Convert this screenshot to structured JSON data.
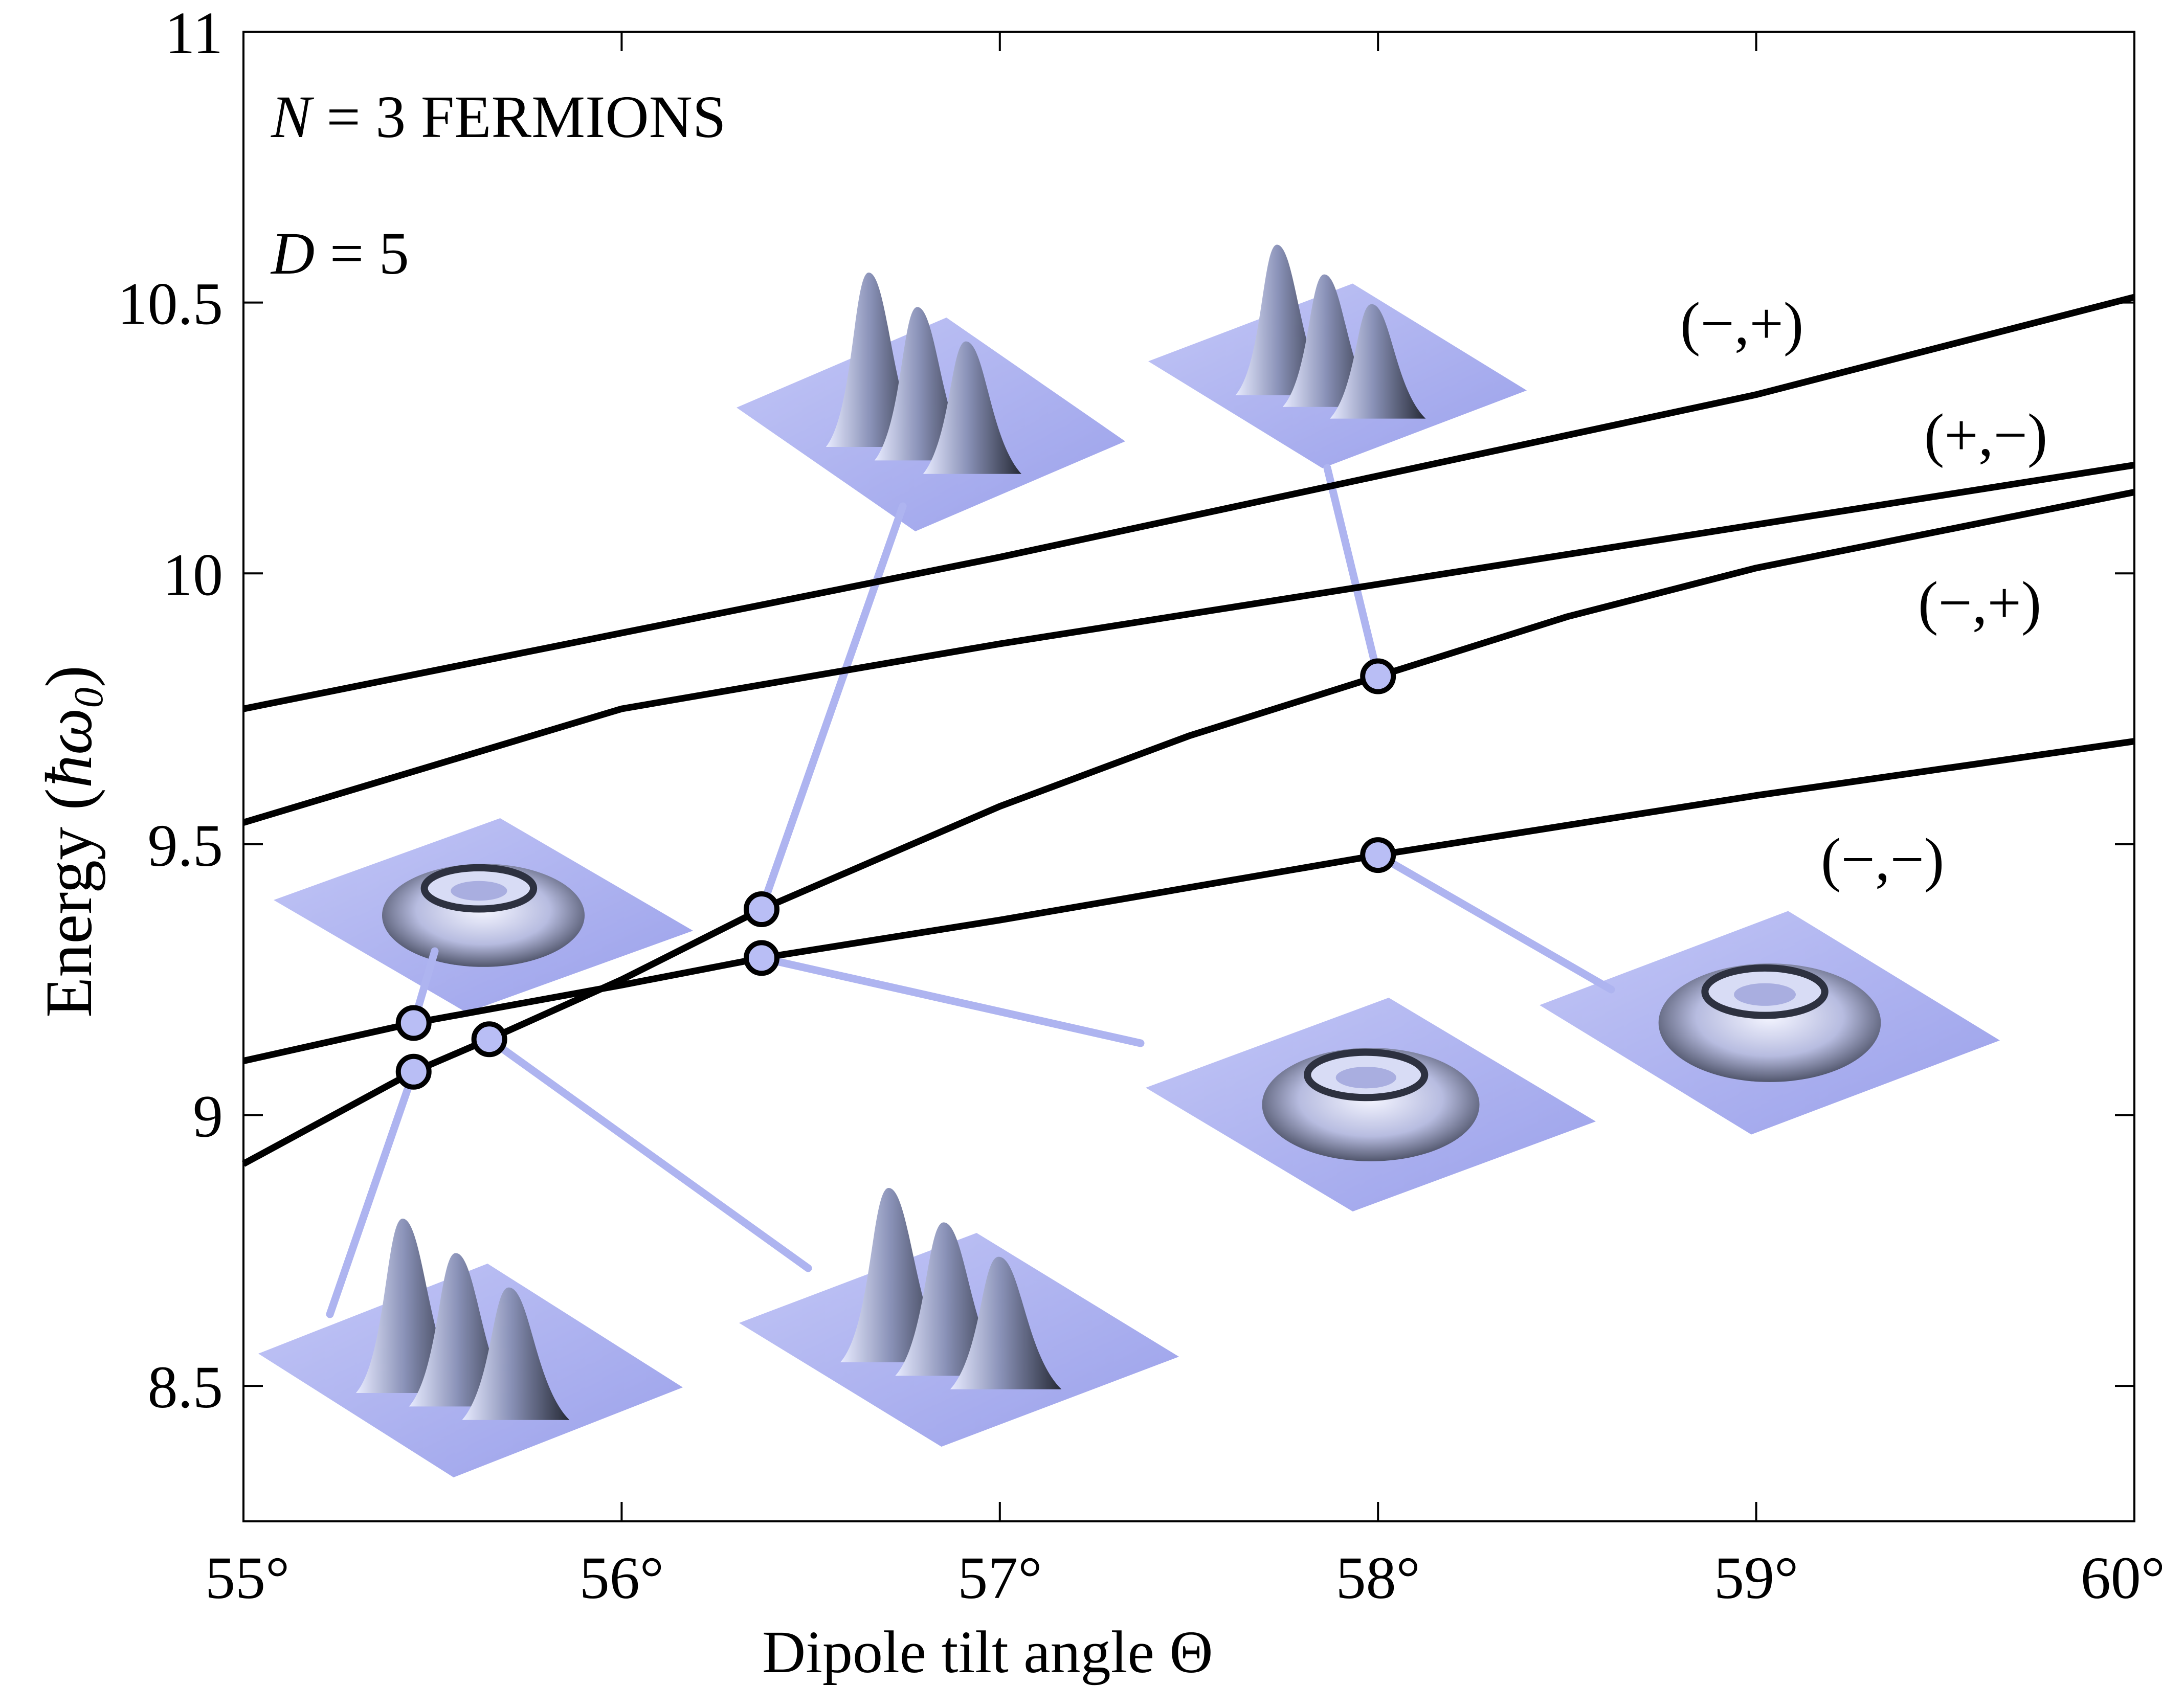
{
  "chart_data": {
    "type": "line",
    "xlabel": "Dipole tilt angle Θ",
    "ylabel": "Energy",
    "ylabel_unit": "ħω",
    "ylabel_unit_sub": "0",
    "xlim": [
      55,
      60
    ],
    "ylim": [
      8.25,
      11
    ],
    "x_ticks": [
      55,
      56,
      57,
      58,
      59,
      60
    ],
    "x_tick_labels": [
      "55°",
      "56°",
      "57°",
      "58°",
      "59°",
      "60°"
    ],
    "y_ticks": [
      8.5,
      9,
      9.5,
      10,
      10.5,
      11
    ],
    "y_tick_labels": [
      "8.5",
      "9",
      "9.5",
      "10",
      "10.5",
      "11"
    ],
    "grid": false,
    "annotations": [
      {
        "italic": "N",
        "text": " = 3 FERMIONS"
      },
      {
        "italic": "D",
        "text": " = 5"
      }
    ],
    "series": [
      {
        "label": "(−,+)",
        "x": [
          55,
          56,
          57,
          58,
          59,
          60
        ],
        "y": [
          9.75,
          9.89,
          10.03,
          10.18,
          10.33,
          10.51
        ]
      },
      {
        "label": "(+,−)",
        "x": [
          55,
          56,
          57,
          58,
          59,
          60
        ],
        "y": [
          9.54,
          9.75,
          9.87,
          9.98,
          10.09,
          10.2
        ]
      },
      {
        "label": "(−,+)",
        "x": [
          55,
          55.45,
          55.65,
          56,
          56.37,
          57,
          57.5,
          58,
          58.5,
          59,
          60
        ],
        "y": [
          8.91,
          9.08,
          9.14,
          9.25,
          9.38,
          9.57,
          9.7,
          9.81,
          9.92,
          10.01,
          10.15
        ]
      },
      {
        "label": "(−,−)",
        "x": [
          55,
          55.45,
          56,
          56.37,
          57,
          58,
          59,
          60
        ],
        "y": [
          9.1,
          9.17,
          9.24,
          9.29,
          9.36,
          9.48,
          9.59,
          9.69
        ]
      }
    ],
    "markers": [
      {
        "x": 55.45,
        "y": 9.17
      },
      {
        "x": 55.45,
        "y": 9.08
      },
      {
        "x": 55.65,
        "y": 9.14
      },
      {
        "x": 56.37,
        "y": 9.38
      },
      {
        "x": 56.37,
        "y": 9.29
      },
      {
        "x": 58.0,
        "y": 9.81
      },
      {
        "x": 58.0,
        "y": 9.48
      }
    ],
    "insets": [
      {
        "shape": "ring",
        "linked_marker": 0
      },
      {
        "shape": "three-peaks",
        "linked_marker": 1
      },
      {
        "shape": "three-peaks",
        "linked_marker": 2
      },
      {
        "shape": "three-peaks",
        "linked_marker": 3
      },
      {
        "shape": "ring",
        "linked_marker": 4
      },
      {
        "shape": "three-peaks",
        "linked_marker": 5
      },
      {
        "shape": "ring",
        "linked_marker": 6
      }
    ],
    "colors": {
      "line": "#000000",
      "connector": "#aeb4f0",
      "marker_fill": "#b9bef5",
      "surface_base": "#a6acee",
      "surface_dark": "#2f3442"
    }
  }
}
